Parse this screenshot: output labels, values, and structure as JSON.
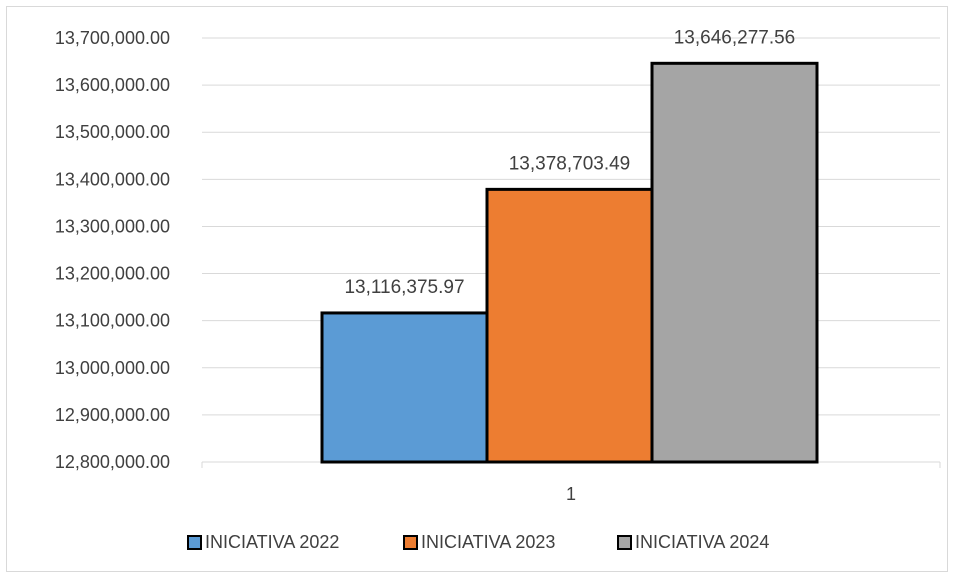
{
  "chart_data": {
    "type": "bar",
    "categories": [
      "1"
    ],
    "series": [
      {
        "name": "INICIATIVA 2022",
        "values": [
          13116375.97
        ],
        "label": "13,116,375.97",
        "color": "#5b9bd5"
      },
      {
        "name": "INICIATIVA 2023",
        "values": [
          13378703.49
        ],
        "label": "13,378,703.49",
        "color": "#ed7d31"
      },
      {
        "name": "INICIATIVA 2024",
        "values": [
          13646277.56
        ],
        "label": "13,646,277.56",
        "color": "#a5a5a5"
      }
    ],
    "ylim": [
      12800000,
      13700000
    ],
    "yticks": [
      12800000,
      12900000,
      13000000,
      13100000,
      13200000,
      13300000,
      13400000,
      13500000,
      13600000,
      13700000
    ],
    "ytick_labels": [
      "12,800,000.00",
      "12,900,000.00",
      "13,000,000.00",
      "13,100,000.00",
      "13,200,000.00",
      "13,300,000.00",
      "13,400,000.00",
      "13,500,000.00",
      "13,600,000.00",
      "13,700,000.00"
    ],
    "title": "",
    "xlabel": "",
    "ylabel": "",
    "grid": true,
    "legend_position": "bottom",
    "bar_outline_color": "#000000",
    "gridline_color": "#d9d9d9"
  }
}
